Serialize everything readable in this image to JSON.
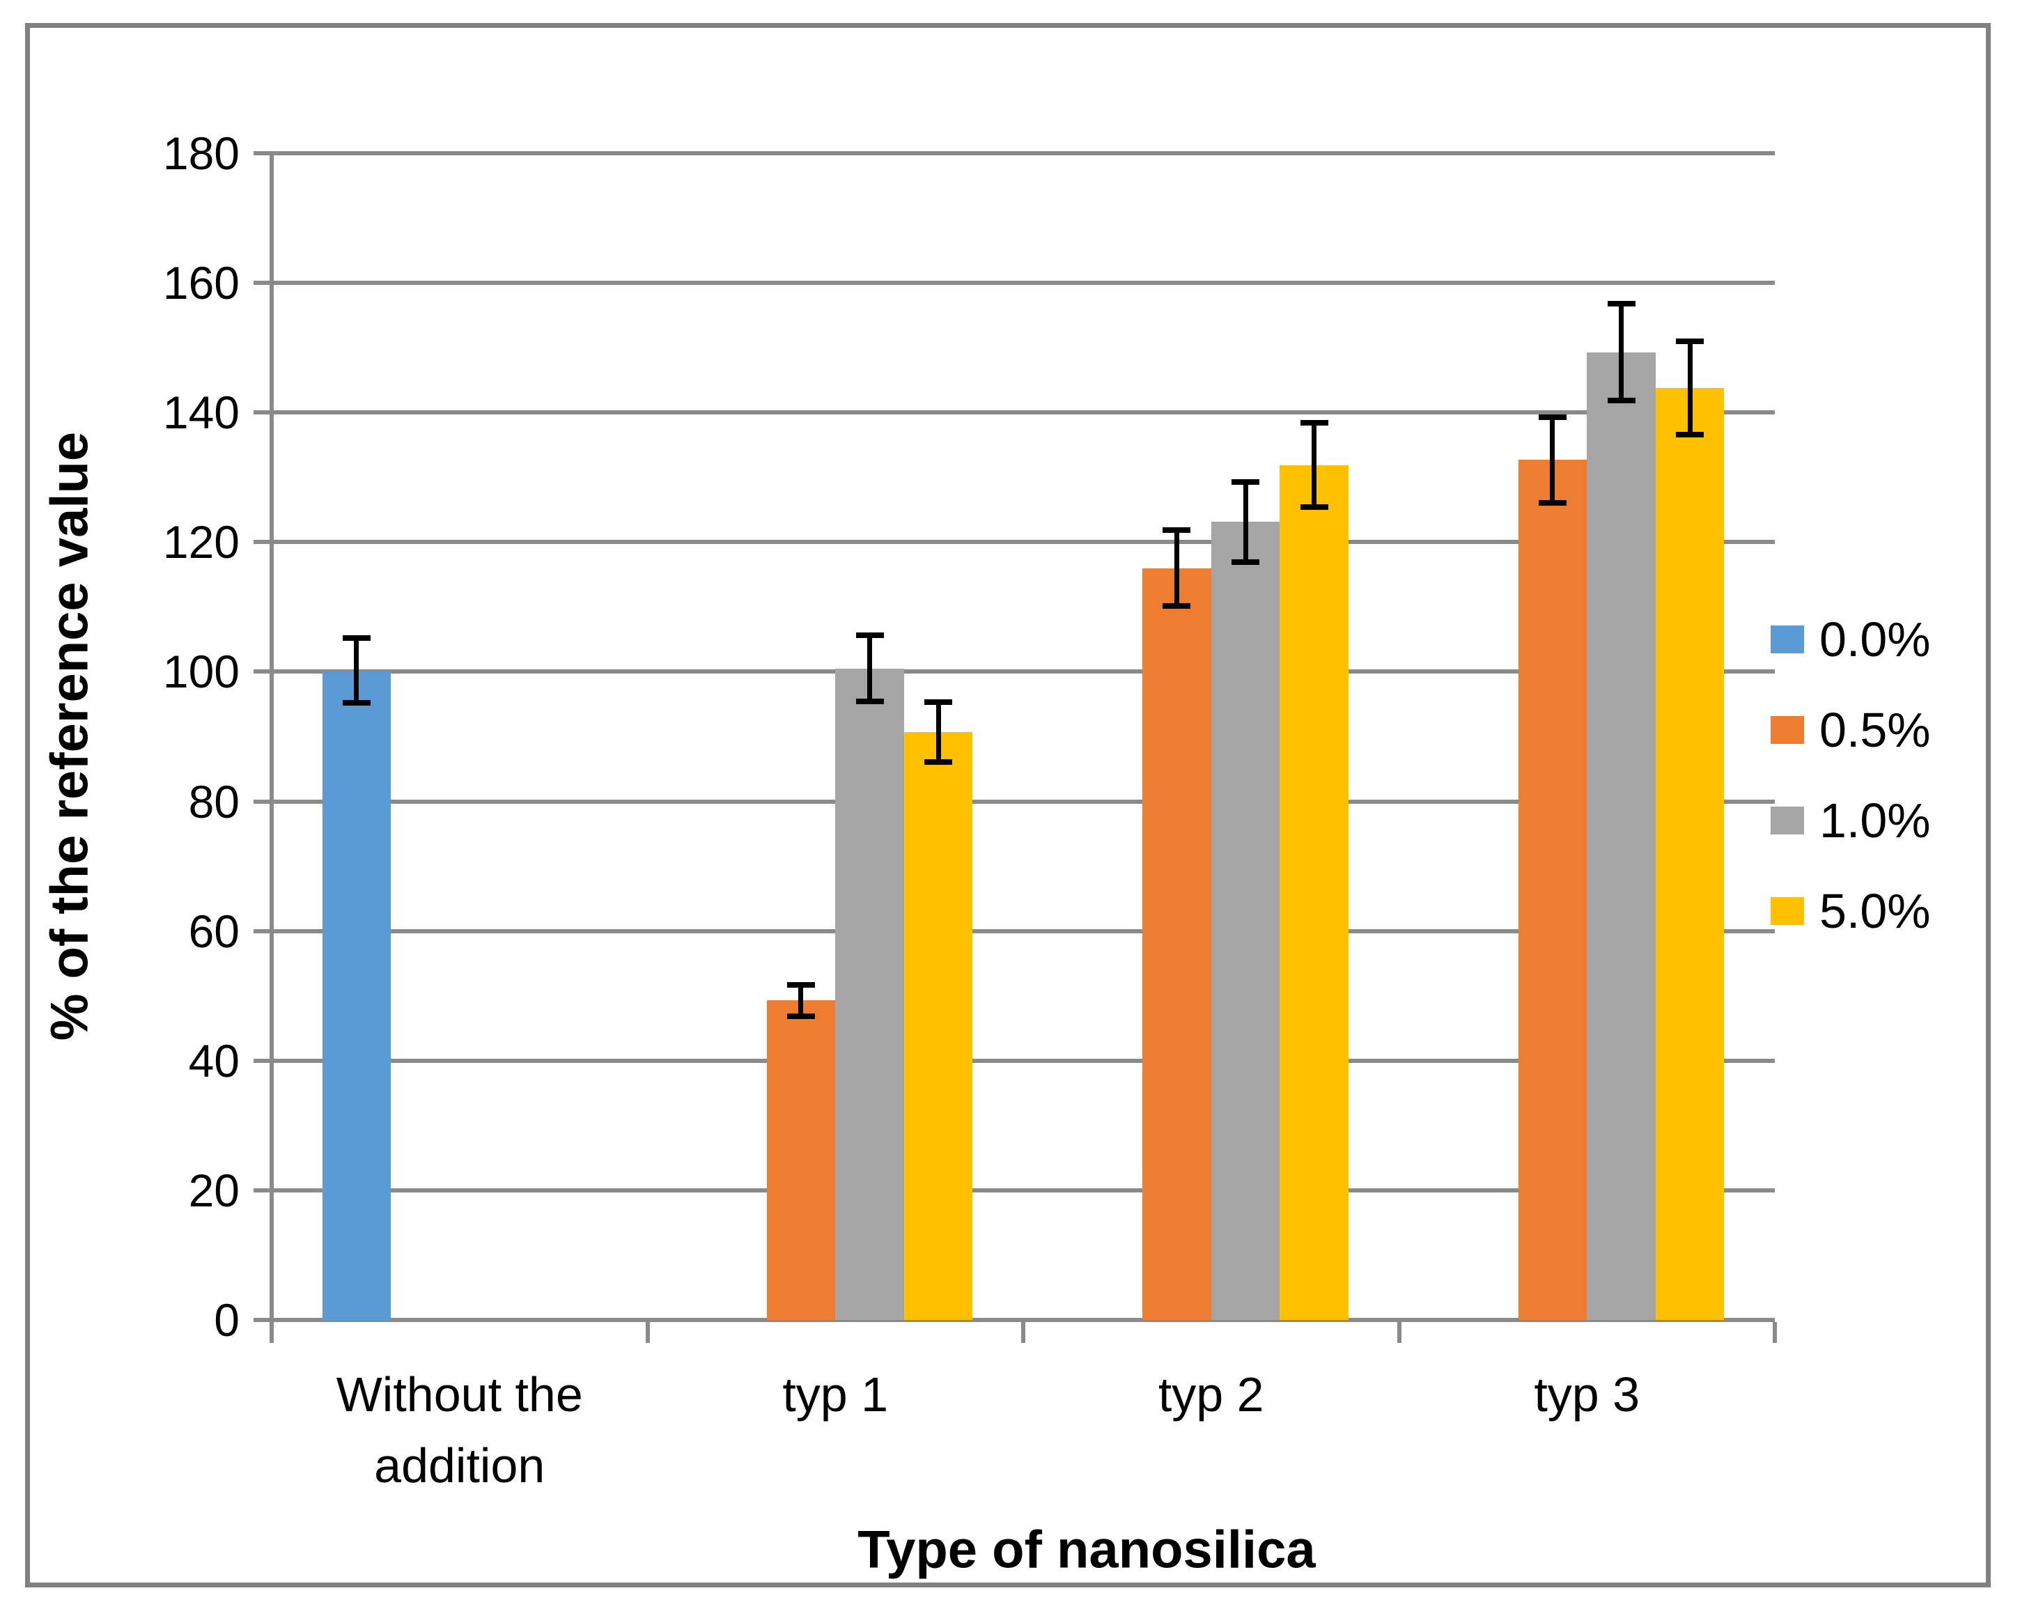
{
  "figure": {
    "background": "#FFFFFF",
    "border_color": "#808080",
    "gridline_color": "#8A8A8A",
    "error_bar_color": "#000000"
  },
  "chart_data": {
    "type": "bar",
    "title": "",
    "xlabel": "Type of nanosilica",
    "ylabel": "% of the reference value",
    "categories": [
      "Without the addition",
      "typ 1",
      "typ 2",
      "typ 3"
    ],
    "ylim": [
      0,
      180
    ],
    "ytick_step": 20,
    "grid": true,
    "legend_position": "right",
    "series": [
      {
        "name": "0.0%",
        "color": "#5B9BD5",
        "values": [
          100.2,
          0,
          0,
          0
        ],
        "errors": [
          5.0,
          0,
          0,
          0
        ]
      },
      {
        "name": "0.5%",
        "color": "#ED7D31",
        "values": [
          0,
          49.3,
          116.0,
          132.7
        ],
        "errors": [
          0,
          2.4,
          5.9,
          6.6
        ]
      },
      {
        "name": "1.0%",
        "color": "#A5A5A5",
        "values": [
          0,
          100.5,
          123.1,
          149.3
        ],
        "errors": [
          0,
          5.1,
          6.2,
          7.5
        ]
      },
      {
        "name": "5.0%",
        "color": "#FFC000",
        "values": [
          0,
          90.7,
          131.9,
          143.8
        ],
        "errors": [
          0,
          4.6,
          6.5,
          7.2
        ]
      }
    ]
  }
}
